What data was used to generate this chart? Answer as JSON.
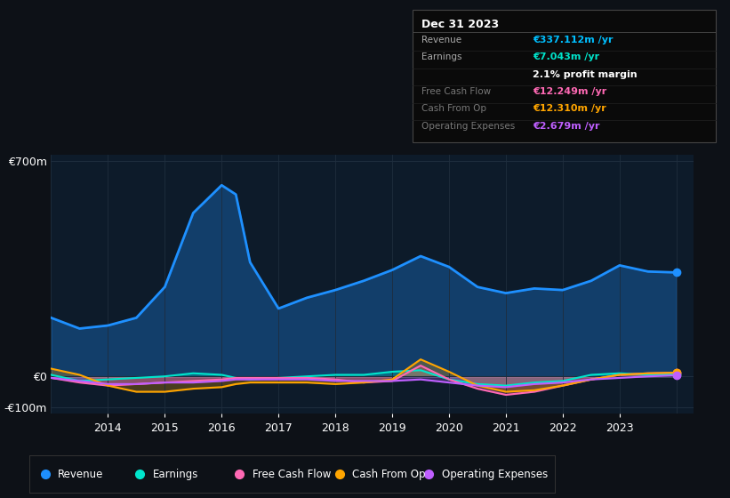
{
  "bg_color": "#0d1117",
  "plot_bg_color": "#0d1b2a",
  "grid_color": "#1e2d3d",
  "title_date": "Dec 31 2023",
  "years": [
    2013.0,
    2013.5,
    2014.0,
    2014.5,
    2015.0,
    2015.5,
    2016.0,
    2016.25,
    2016.5,
    2017.0,
    2017.5,
    2018.0,
    2018.5,
    2019.0,
    2019.5,
    2020.0,
    2020.5,
    2021.0,
    2021.5,
    2022.0,
    2022.5,
    2023.0,
    2023.5,
    2024.0
  ],
  "revenue": [
    190,
    155,
    165,
    190,
    290,
    530,
    620,
    590,
    370,
    220,
    255,
    280,
    310,
    345,
    390,
    355,
    290,
    270,
    285,
    280,
    310,
    360,
    340,
    337
  ],
  "earnings": [
    5,
    -15,
    -10,
    -5,
    0,
    10,
    5,
    -5,
    -10,
    -5,
    0,
    5,
    5,
    15,
    20,
    -10,
    -25,
    -30,
    -20,
    -15,
    5,
    10,
    5,
    7
  ],
  "free_cash_flow": [
    -5,
    -20,
    -30,
    -25,
    -20,
    -15,
    -10,
    -5,
    -5,
    -5,
    -5,
    -10,
    -20,
    -15,
    35,
    -10,
    -40,
    -60,
    -50,
    -30,
    -10,
    5,
    10,
    12
  ],
  "cash_from_op": [
    25,
    5,
    -30,
    -50,
    -50,
    -40,
    -35,
    -25,
    -20,
    -20,
    -20,
    -25,
    -20,
    -10,
    55,
    15,
    -30,
    -50,
    -45,
    -30,
    -10,
    5,
    10,
    12
  ],
  "operating_expenses": [
    -5,
    -15,
    -25,
    -25,
    -20,
    -20,
    -15,
    -10,
    -10,
    -10,
    -10,
    -15,
    -15,
    -15,
    -10,
    -20,
    -30,
    -35,
    -25,
    -20,
    -10,
    -5,
    0,
    3
  ],
  "ylim": [
    -120,
    720
  ],
  "line_colors": {
    "revenue": "#1e90ff",
    "earnings": "#00e5cc",
    "free_cash_flow": "#ff69b4",
    "cash_from_op": "#ffa500",
    "operating_expenses": "#bf5fff"
  },
  "fill_alphas": {
    "revenue": 0.3,
    "earnings": 0.25,
    "free_cash_flow": 0.25,
    "cash_from_op": 0.25,
    "operating_expenses": 0.25
  },
  "table_rows": [
    {
      "label": "Revenue",
      "value": "€337.112m /yr",
      "color": "#00bfff",
      "dim": false
    },
    {
      "label": "Earnings",
      "value": "€7.043m /yr",
      "color": "#00e5cc",
      "dim": false
    },
    {
      "label": "",
      "value": "2.1% profit margin",
      "color": "#ffffff",
      "dim": false
    },
    {
      "label": "Free Cash Flow",
      "value": "€12.249m /yr",
      "color": "#ff69b4",
      "dim": true
    },
    {
      "label": "Cash From Op",
      "value": "€12.310m /yr",
      "color": "#ffa500",
      "dim": true
    },
    {
      "label": "Operating Expenses",
      "value": "€2.679m /yr",
      "color": "#bf5fff",
      "dim": true
    }
  ],
  "legend_items": [
    {
      "label": "Revenue",
      "color": "#1e90ff"
    },
    {
      "label": "Earnings",
      "color": "#00e5cc"
    },
    {
      "label": "Free Cash Flow",
      "color": "#ff69b4"
    },
    {
      "label": "Cash From Op",
      "color": "#ffa500"
    },
    {
      "label": "Operating Expenses",
      "color": "#bf5fff"
    }
  ]
}
